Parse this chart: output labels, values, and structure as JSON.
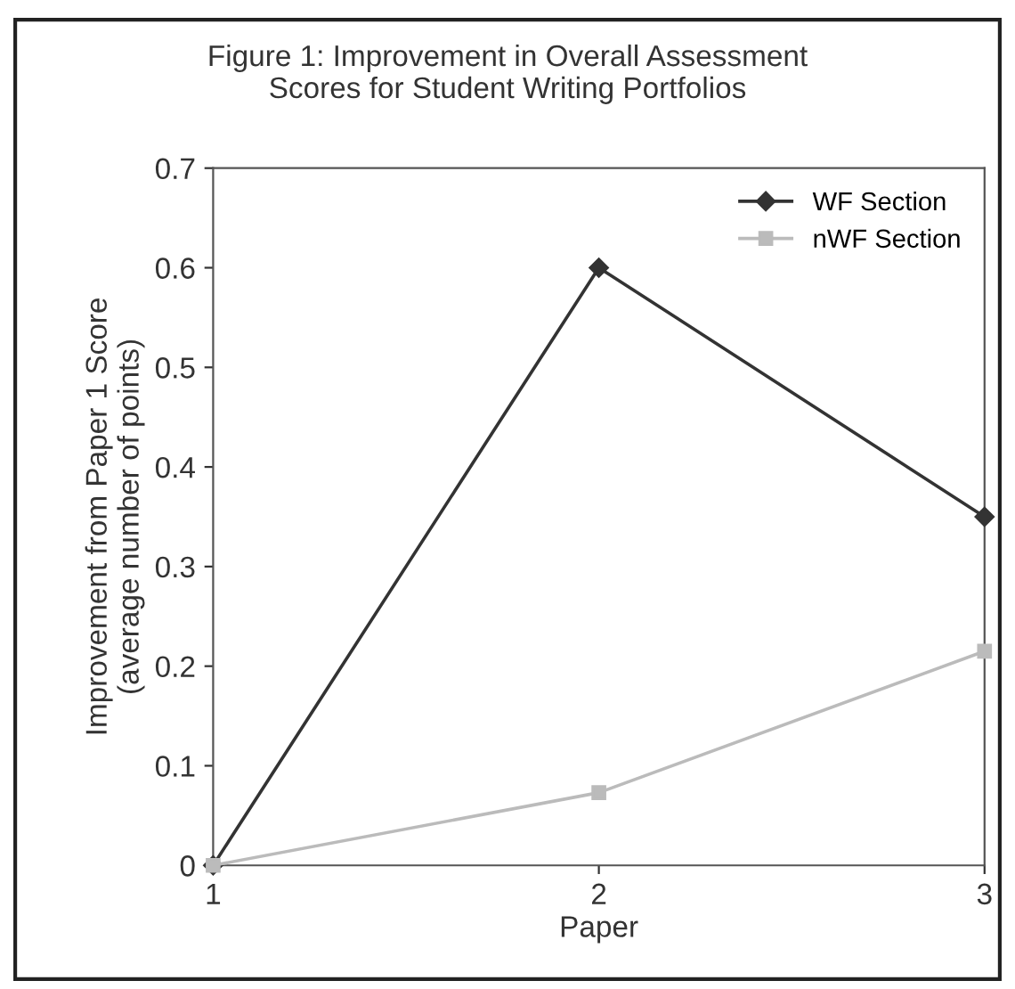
{
  "chart_data": {
    "type": "line",
    "title": "Figure 1: Improvement in Overall Assessment\nScores for Student Writing Portfolios",
    "xlabel": "Paper",
    "ylabel": "Improvement from Paper 1 Score\n(average number of points)",
    "x": [
      1,
      2,
      3
    ],
    "series": [
      {
        "name": "WF Section",
        "color": "#333333",
        "marker": "diamond",
        "values": [
          0,
          0.6,
          0.35
        ]
      },
      {
        "name": "nWF Section",
        "color": "#bbbbbb",
        "marker": "square",
        "values": [
          0,
          0.073,
          0.215
        ]
      }
    ],
    "xlim": [
      1,
      3
    ],
    "xticks": [
      1,
      2,
      3
    ],
    "ylim": [
      0,
      0.7
    ],
    "yticks": [
      0,
      0.1,
      0.2,
      0.3,
      0.4,
      0.5,
      0.6,
      0.7
    ],
    "grid": false,
    "legend": "top right"
  }
}
